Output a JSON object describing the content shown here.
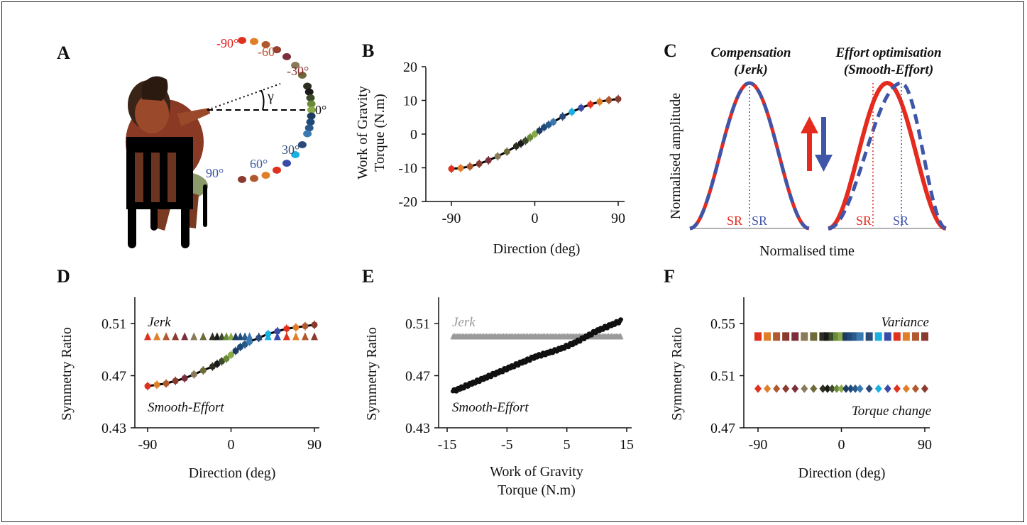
{
  "panels": {
    "A": {
      "letter": "A",
      "angle_labels": [
        "-90°",
        "-60°",
        "-30°",
        "0°",
        "30°",
        "60°",
        "90°"
      ],
      "angle_label_colors": [
        "#e02020",
        "#c0502a",
        "#8a2d2d",
        "#111111",
        "#2e4a6e",
        "#3a5fa0",
        "#3b52a8"
      ],
      "gamma": "γ"
    },
    "B": {
      "letter": "B",
      "ylabel_line1": "Work of Gravity",
      "ylabel_line2": "Torque (N.m)",
      "xlabel": "Direction (deg)",
      "yticks": [
        "20",
        "10",
        "0",
        "-10",
        "-20"
      ],
      "xticks": [
        "-90",
        "0",
        "90"
      ]
    },
    "C": {
      "letter": "C",
      "title_left_1": "Compensation",
      "title_left_2": "(Jerk)",
      "title_right_1": "Effort optimisation",
      "title_right_2": "(Smooth-Effort)",
      "ylabel": "Normalised amplitude",
      "xlabel": "Normalised time",
      "sr": "SR"
    },
    "D": {
      "letter": "D",
      "ylabel": "Symmetry Ratio",
      "xlabel": "Direction (deg)",
      "yticks": [
        "0.51",
        "0.47",
        "0.43"
      ],
      "xticks": [
        "-90",
        "0",
        "90"
      ],
      "label_jerk": "Jerk",
      "label_smooth": "Smooth-Effort"
    },
    "E": {
      "letter": "E",
      "ylabel": "Symmetry Ratio",
      "xlabel_line1": "Work of Gravity",
      "xlabel_line2": "Torque (N.m)",
      "yticks": [
        "0.51",
        "0.47",
        "0.43"
      ],
      "xticks": [
        "-15",
        "-5",
        "5",
        "15"
      ],
      "label_jerk": "Jerk",
      "label_smooth": "Smooth-Effort"
    },
    "F": {
      "letter": "F",
      "ylabel": "Symmetry Ratio",
      "xlabel": "Direction (deg)",
      "yticks": [
        "0.55",
        "0.51",
        "0.47"
      ],
      "xticks": [
        "-90",
        "0",
        "90"
      ],
      "label_variance": "Variance",
      "label_torque": "Torque change"
    }
  },
  "direction_colors": [
    "#e0311f",
    "#e07f2a",
    "#b0582e",
    "#8a3a2e",
    "#7a2f3a",
    "#8a7a5a",
    "#6e6a3a",
    "#2e2e20",
    "#1a1a1a",
    "#3a4a2a",
    "#6a8a3a",
    "#8aaa4a",
    "#1e3a5e",
    "#1e4a7a",
    "#2a5a8a",
    "#3a7ab0",
    "#2a4a7a",
    "#1ab0e0",
    "#3a4aa8"
  ],
  "chart_data": [
    {
      "panel": "B",
      "type": "line",
      "xlabel": "Direction (deg)",
      "ylabel": "Work of Gravity Torque (N.m)",
      "xlim": [
        -95,
        95
      ],
      "ylim": [
        -20,
        20
      ],
      "x": [
        -90,
        -80,
        -70,
        -60,
        -50,
        -40,
        -30,
        -20,
        -15,
        -10,
        -5,
        0,
        5,
        10,
        15,
        20,
        30,
        40,
        50,
        60,
        70,
        80,
        90
      ],
      "series": [
        {
          "values": [
            -10.3,
            -10.1,
            -9.6,
            -8.8,
            -7.8,
            -6.6,
            -5.2,
            -3.6,
            -2.8,
            -2.0,
            -1.0,
            0,
            1.0,
            2.0,
            2.8,
            3.6,
            5.2,
            6.6,
            7.8,
            8.8,
            9.6,
            10.1,
            10.4
          ]
        }
      ],
      "grid": false
    },
    {
      "panel": "D",
      "type": "scatter",
      "xlabel": "Direction (deg)",
      "ylabel": "Symmetry Ratio",
      "xlim": [
        -95,
        95
      ],
      "ylim": [
        0.43,
        0.53
      ],
      "x": [
        -90,
        -80,
        -70,
        -60,
        -50,
        -40,
        -30,
        -20,
        -15,
        -10,
        -5,
        0,
        5,
        10,
        15,
        20,
        30,
        40,
        50,
        60,
        70,
        80,
        90
      ],
      "series": [
        {
          "name": "Jerk",
          "values": [
            0.5,
            0.5,
            0.5,
            0.5,
            0.5,
            0.5,
            0.5,
            0.5,
            0.5,
            0.5,
            0.5,
            0.5,
            0.5,
            0.5,
            0.5,
            0.5,
            0.5,
            0.5,
            0.5,
            0.5,
            0.5,
            0.5,
            0.5
          ]
        },
        {
          "name": "Smooth-Effort",
          "values": [
            0.462,
            0.463,
            0.464,
            0.466,
            0.468,
            0.471,
            0.474,
            0.477,
            0.479,
            0.481,
            0.483,
            0.486,
            0.489,
            0.492,
            0.494,
            0.496,
            0.499,
            0.502,
            0.504,
            0.506,
            0.507,
            0.508,
            0.509
          ]
        }
      ]
    },
    {
      "panel": "E",
      "type": "scatter",
      "xlabel": "Work of Gravity Torque (N.m)",
      "ylabel": "Symmetry Ratio",
      "xlim": [
        -15,
        15
      ],
      "ylim": [
        0.43,
        0.53
      ],
      "series": [
        {
          "name": "Jerk",
          "x_range": [
            -14,
            14
          ],
          "value": 0.5
        },
        {
          "name": "Smooth-Effort",
          "x_range": [
            -14,
            14
          ],
          "y_range": [
            0.458,
            0.512
          ]
        }
      ]
    },
    {
      "panel": "F",
      "type": "scatter",
      "xlabel": "Direction (deg)",
      "ylabel": "Symmetry Ratio",
      "xlim": [
        -95,
        95
      ],
      "ylim": [
        0.47,
        0.57
      ],
      "x": [
        -90,
        -80,
        -70,
        -60,
        -50,
        -40,
        -30,
        -20,
        -15,
        -10,
        -5,
        0,
        5,
        10,
        15,
        20,
        30,
        40,
        50,
        60,
        70,
        80,
        90
      ],
      "series": [
        {
          "name": "Variance",
          "values": [
            0.54,
            0.54,
            0.54,
            0.54,
            0.54,
            0.54,
            0.54,
            0.54,
            0.54,
            0.54,
            0.54,
            0.54,
            0.54,
            0.54,
            0.54,
            0.54,
            0.54,
            0.54,
            0.54,
            0.54,
            0.54,
            0.54,
            0.54
          ]
        },
        {
          "name": "Torque change",
          "values": [
            0.5,
            0.5,
            0.5,
            0.5,
            0.5,
            0.5,
            0.5,
            0.5,
            0.5,
            0.5,
            0.5,
            0.5,
            0.5,
            0.5,
            0.5,
            0.5,
            0.5,
            0.5,
            0.5,
            0.5,
            0.5,
            0.5,
            0.5
          ]
        }
      ]
    }
  ]
}
